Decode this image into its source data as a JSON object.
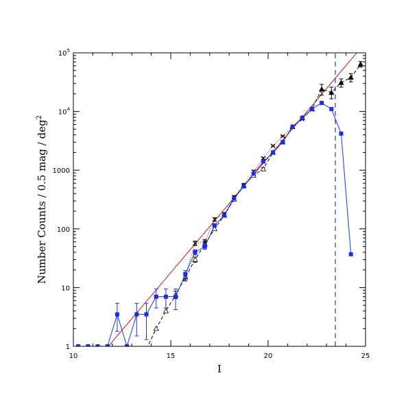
{
  "chart_data": {
    "type": "scatter",
    "xlabel": "I",
    "ylabel": "Number Counts / 0.5 mag / deg",
    "ylabel_sup": "2",
    "xlim": [
      10,
      25
    ],
    "ylim": [
      1,
      100000
    ],
    "yscale": "log",
    "x_ticks": [
      10,
      15,
      20,
      25
    ],
    "x_tick_labels": [
      "10",
      "15",
      "20",
      "25"
    ],
    "y_ticks": [
      1,
      10,
      100,
      1000,
      10000,
      100000
    ],
    "y_tick_labels": [
      {
        "base": "1",
        "sup": ""
      },
      {
        "base": "10",
        "sup": ""
      },
      {
        "base": "100",
        "sup": ""
      },
      {
        "base": "1000",
        "sup": ""
      },
      {
        "base": "10",
        "sup": "4"
      },
      {
        "base": "10",
        "sup": "5"
      }
    ],
    "grid": false,
    "colors": {
      "blue": "#1a2ee8",
      "red": "#cc1111",
      "black": "#000000"
    },
    "series": [
      {
        "style": "blue-squares-solid",
        "color": "#1a2ee8",
        "x": [
          10.25,
          10.75,
          11.25,
          11.75,
          12.25,
          12.75,
          13.25,
          13.75,
          14.25,
          14.75,
          15.25,
          15.75,
          16.25,
          16.75,
          17.25,
          17.75,
          18.25,
          18.75,
          19.25,
          19.75,
          20.25,
          20.75,
          21.25,
          21.75,
          22.25,
          22.75,
          23.25,
          23.75,
          24.25
        ],
        "y": [
          1,
          1,
          1,
          1,
          3.5,
          1,
          3.5,
          3.5,
          7,
          7,
          7,
          17,
          40,
          50,
          115,
          170,
          330,
          530,
          870,
          1400,
          2000,
          3000,
          5500,
          7800,
          11000,
          14000,
          11000,
          4200,
          37
        ],
        "err_low": [
          null,
          null,
          null,
          null,
          1.8,
          null,
          1.5,
          1.3,
          4.5,
          4.5,
          4.2,
          14.5,
          36,
          45,
          108,
          163,
          null,
          null,
          null,
          null,
          null,
          null,
          null,
          null,
          null,
          null,
          null,
          null,
          null
        ],
        "err_high": [
          null,
          null,
          null,
          null,
          5.4,
          null,
          5.4,
          5.4,
          9.5,
          9.5,
          9.5,
          19.5,
          44,
          55,
          122,
          178,
          null,
          null,
          null,
          null,
          null,
          null,
          null,
          null,
          null,
          null,
          null,
          null,
          null
        ]
      },
      {
        "style": "black-triangles-dashed",
        "color": "#000000",
        "x": [
          13.75,
          14.25,
          14.75,
          15.25,
          15.75,
          16.25,
          16.75,
          17.25,
          17.75,
          18.25,
          18.75,
          19.25,
          19.75,
          20.25,
          20.75,
          21.25,
          21.75,
          22.25,
          22.75,
          23.25,
          23.75,
          24.25,
          24.75
        ],
        "y": [
          0.9,
          2,
          4,
          7.5,
          15,
          30,
          55,
          100,
          170,
          320,
          550,
          820,
          1050,
          2000,
          3000,
          5500,
          7800,
          11000,
          24000,
          21000,
          31000,
          38000,
          64000
        ],
        "filled": [
          false,
          false,
          false,
          false,
          false,
          false,
          false,
          false,
          false,
          false,
          false,
          false,
          false,
          false,
          false,
          false,
          false,
          false,
          true,
          true,
          true,
          true,
          true
        ],
        "err_low": [
          null,
          null,
          null,
          6.5,
          13,
          27,
          50,
          93,
          160,
          300,
          520,
          780,
          1000,
          1900,
          2850,
          5200,
          7400,
          10400,
          19000,
          16500,
          26000,
          32000,
          57000
        ],
        "err_high": [
          null,
          null,
          null,
          8.7,
          17,
          33,
          60,
          107,
          180,
          340,
          580,
          860,
          1100,
          2100,
          3150,
          5800,
          8200,
          11600,
          29000,
          26000,
          36000,
          44000,
          71000
        ]
      },
      {
        "style": "black-crosses",
        "color": "#000000",
        "x": [
          15.75,
          16.25,
          16.75,
          17.25,
          17.75,
          18.25,
          18.75,
          19.25,
          19.75,
          20.25,
          20.75,
          21.25,
          21.75,
          22.25
        ],
        "y": [
          16,
          57,
          60,
          145,
          180,
          350,
          560,
          950,
          1600,
          2600,
          3800,
          5400,
          7400,
          10800
        ],
        "err_low": [
          14,
          52,
          54,
          135,
          170,
          330,
          530,
          900,
          1540,
          2520,
          3700,
          5250,
          7200,
          10500
        ],
        "err_high": [
          18,
          62,
          66,
          155,
          190,
          370,
          590,
          1000,
          1660,
          2680,
          3900,
          5550,
          7600,
          11100
        ]
      }
    ],
    "reference_lines": [
      {
        "style": "red-solid",
        "color": "#cc1111",
        "x": [
          11.8,
          25
        ],
        "y": [
          1,
          150000
        ]
      },
      {
        "style": "blue-dashed-vertical",
        "color": "#1a2ee8",
        "x": [
          23.45,
          23.45
        ],
        "y": [
          1,
          100000
        ]
      }
    ]
  }
}
